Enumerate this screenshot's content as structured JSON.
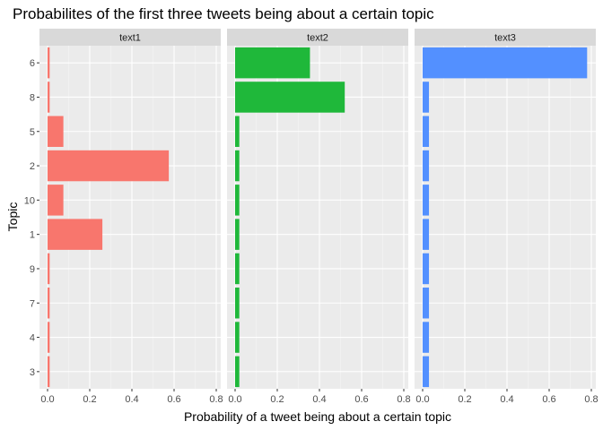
{
  "chart_data": {
    "type": "bar",
    "orientation": "horizontal",
    "title": "Probabilites of the first three tweets being about a certain topic",
    "xlabel": "Probability of a tweet being about a certain topic",
    "ylabel": "Topic",
    "categories": [
      "6",
      "8",
      "5",
      "2",
      "10",
      "1",
      "9",
      "7",
      "4",
      "3"
    ],
    "xlim": [
      0,
      0.8
    ],
    "xticks": [
      "0.0",
      "0.2",
      "0.4",
      "0.6",
      "0.8"
    ],
    "grid": true,
    "legend": "none",
    "facets": [
      {
        "name": "text1",
        "color": "#F8766D",
        "values": [
          0.01,
          0.01,
          0.075,
          0.575,
          0.075,
          0.26,
          0.01,
          0.01,
          0.01,
          0.01
        ]
      },
      {
        "name": "text2",
        "color": "#1FB83A",
        "values": [
          0.355,
          0.52,
          0.02,
          0.02,
          0.02,
          0.02,
          0.02,
          0.02,
          0.02,
          0.02
        ]
      },
      {
        "name": "text3",
        "color": "#5390FF",
        "values": [
          0.78,
          0.03,
          0.03,
          0.03,
          0.03,
          0.03,
          0.03,
          0.03,
          0.03,
          0.03
        ]
      }
    ]
  }
}
